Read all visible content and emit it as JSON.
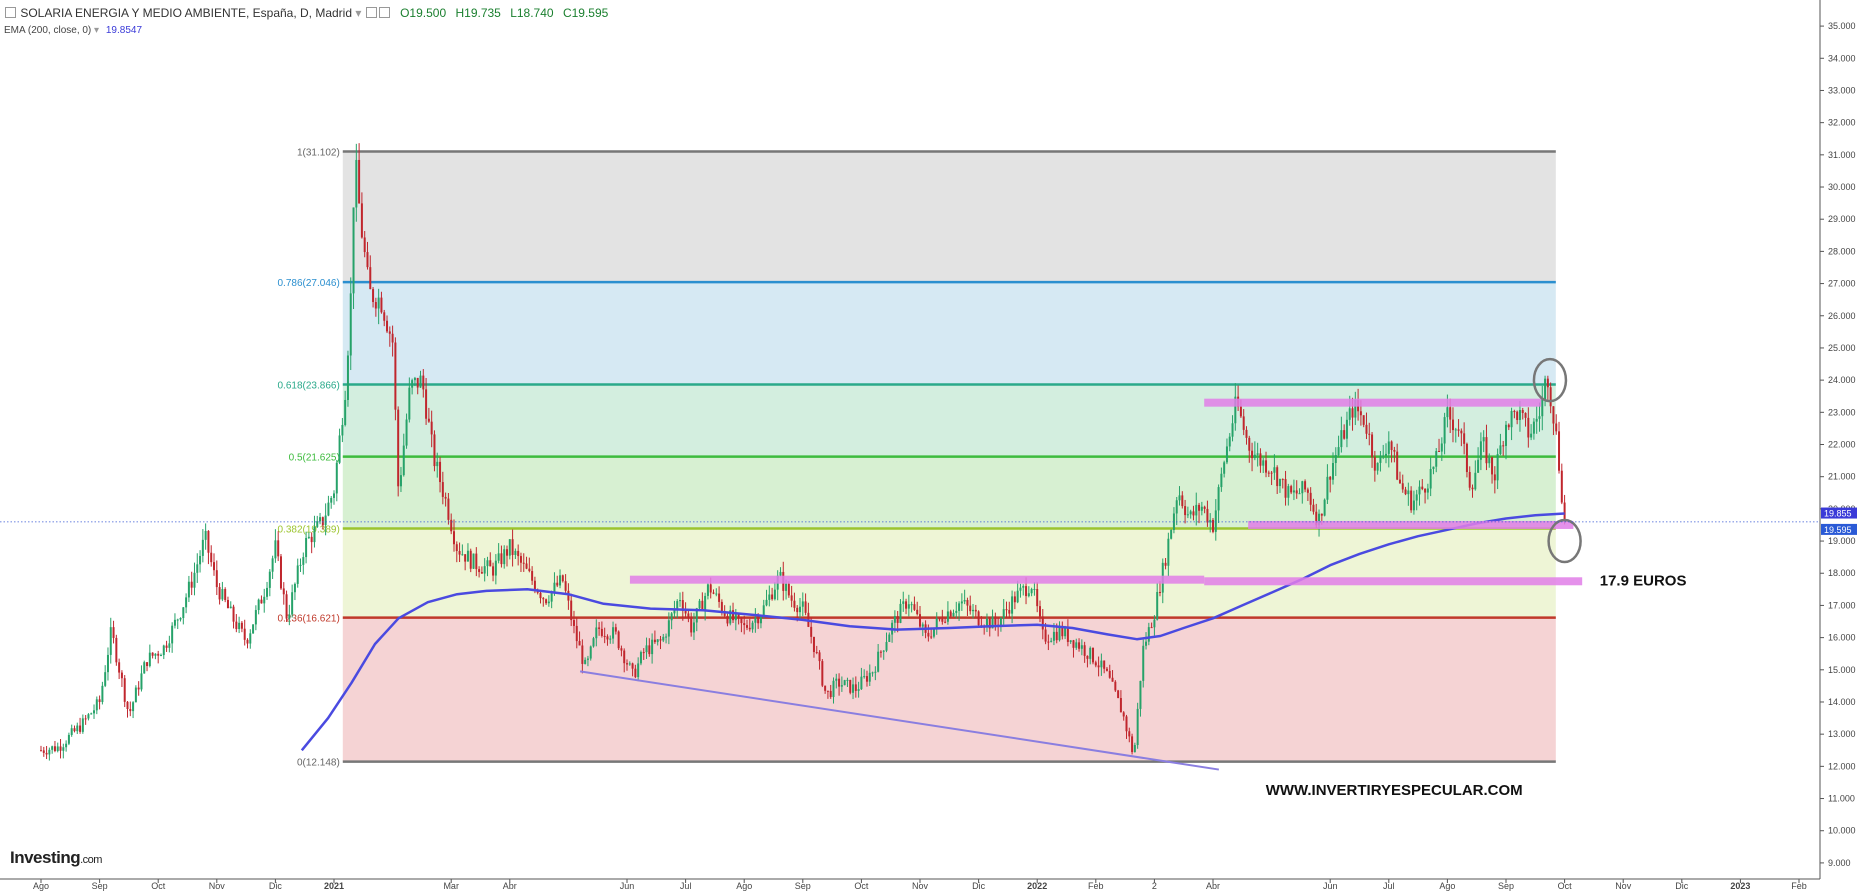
{
  "header": {
    "instrument": "SOLARIA ENERGIA Y MEDIO AMBIENTE, España, D, Madrid",
    "open": "O19.500",
    "high": "H19.735",
    "low": "L18.740",
    "close": "C19.595",
    "indicator": "EMA (200, close, 0)",
    "indicator_value": "19.8547"
  },
  "logo": {
    "brand": "Investing",
    "suffix": ".com"
  },
  "colors": {
    "up": "#26a269",
    "down": "#c0262d",
    "ema": "#4a4ae0",
    "resistance": "#e07ee8",
    "trendline": "#8a7ee0",
    "fib_line_100": "#777777",
    "fib_line_786": "#2b8fcf",
    "fib_line_618": "#2aa98a",
    "fib_line_50": "#3dbb3d",
    "fib_line_382": "#9cc42e",
    "fib_line_236": "#c0392b",
    "fib_line_0": "#777777"
  },
  "chart_data": {
    "type": "candlestick",
    "instrument": "SOLARIA ENERGIA Y MEDIO AMBIENTE",
    "interval": "D",
    "ylim": [
      8.5,
      35.5
    ],
    "y_ticks": [
      "9.000",
      "10.000",
      "11.000",
      "12.000",
      "13.000",
      "14.000",
      "15.000",
      "16.000",
      "17.000",
      "18.000",
      "19.000",
      "20.000",
      "21.000",
      "22.000",
      "23.000",
      "24.000",
      "25.000",
      "26.000",
      "27.000",
      "28.000",
      "29.000",
      "30.000",
      "31.000",
      "32.000",
      "33.000",
      "34.000",
      "35.000"
    ],
    "x_ticks": [
      "Ago",
      "Sep",
      "Oct",
      "Nov",
      "Dic",
      "2021",
      "Mar",
      "Abr",
      "Jun",
      "Jul",
      "Ago",
      "Sep",
      "Oct",
      "Nov",
      "Dic",
      "2022",
      "Feb",
      "2",
      "Abr",
      "Jun",
      "Jul",
      "Ago",
      "Sep",
      "Oct",
      "Nov",
      "Dic",
      "2023",
      "Feb"
    ],
    "x_tick_months": [
      0,
      1,
      2,
      3,
      4,
      5,
      7,
      8,
      10,
      11,
      12,
      13,
      14,
      15,
      16,
      17,
      18,
      19,
      20,
      22,
      23,
      24,
      25,
      26,
      27,
      28,
      29,
      30
    ],
    "last_price": 19.595,
    "last_price_label": "19.595",
    "ema_last": 19.855,
    "ema_last_label": "19.855",
    "fibonacci": {
      "start_month": 5.15,
      "end_month": 25.85,
      "levels": [
        {
          "ratio": "1",
          "price": 31.102,
          "label": "1(31.102)"
        },
        {
          "ratio": "0.786",
          "price": 27.046,
          "label": "0.786(27.046)"
        },
        {
          "ratio": "0.618",
          "price": 23.866,
          "label": "0.618(23.866)"
        },
        {
          "ratio": "0.5",
          "price": 21.625,
          "label": "0.5(21.625)"
        },
        {
          "ratio": "0.382",
          "price": 19.389,
          "label": "0.382(19.389)"
        },
        {
          "ratio": "0.236",
          "price": 16.621,
          "label": "0.236(16.621)"
        },
        {
          "ratio": "0",
          "price": 12.148,
          "label": "0(12.148)"
        }
      ],
      "fills": [
        "#e3e3e3",
        "#d6e9f3",
        "#d3eedf",
        "#d7f0d2",
        "#eef5d6",
        "#f5d3d4"
      ]
    },
    "close_path": [
      [
        0.0,
        12.5
      ],
      [
        0.3,
        12.6
      ],
      [
        0.7,
        13.3
      ],
      [
        1.0,
        14.0
      ],
      [
        1.2,
        16.2
      ],
      [
        1.5,
        13.6
      ],
      [
        1.8,
        15.3
      ],
      [
        2.1,
        15.7
      ],
      [
        2.4,
        16.9
      ],
      [
        2.6,
        17.9
      ],
      [
        2.8,
        19.1
      ],
      [
        3.0,
        17.6
      ],
      [
        3.3,
        16.5
      ],
      [
        3.5,
        15.9
      ],
      [
        3.8,
        17.4
      ],
      [
        4.0,
        18.8
      ],
      [
        4.2,
        16.6
      ],
      [
        4.5,
        18.9
      ],
      [
        4.8,
        19.6
      ],
      [
        5.0,
        20.6
      ],
      [
        5.2,
        23.9
      ],
      [
        5.3,
        27.0
      ],
      [
        5.35,
        31.0
      ],
      [
        5.45,
        29.0
      ],
      [
        5.6,
        26.7
      ],
      [
        5.8,
        26.5
      ],
      [
        6.0,
        25.2
      ],
      [
        6.1,
        20.5
      ],
      [
        6.3,
        23.8
      ],
      [
        6.5,
        24.0
      ],
      [
        6.7,
        21.6
      ],
      [
        6.9,
        20.3
      ],
      [
        7.1,
        18.8
      ],
      [
        7.4,
        18.3
      ],
      [
        7.7,
        18.1
      ],
      [
        8.0,
        18.8
      ],
      [
        8.3,
        18.0
      ],
      [
        8.6,
        17.2
      ],
      [
        8.9,
        17.8
      ],
      [
        9.1,
        16.2
      ],
      [
        9.3,
        15.0
      ],
      [
        9.5,
        16.3
      ],
      [
        9.8,
        16.1
      ],
      [
        10.1,
        14.8
      ],
      [
        10.3,
        15.6
      ],
      [
        10.6,
        15.9
      ],
      [
        10.9,
        17.3
      ],
      [
        11.1,
        16.3
      ],
      [
        11.4,
        17.6
      ],
      [
        11.7,
        16.7
      ],
      [
        12.0,
        16.3
      ],
      [
        12.3,
        16.8
      ],
      [
        12.6,
        17.9
      ],
      [
        12.8,
        17.2
      ],
      [
        13.0,
        16.9
      ],
      [
        13.2,
        15.7
      ],
      [
        13.4,
        14.2
      ],
      [
        13.6,
        14.6
      ],
      [
        13.9,
        14.4
      ],
      [
        14.2,
        15.0
      ],
      [
        14.5,
        16.3
      ],
      [
        14.8,
        17.2
      ],
      [
        15.1,
        16.0
      ],
      [
        15.4,
        16.7
      ],
      [
        15.7,
        17.1
      ],
      [
        16.0,
        16.6
      ],
      [
        16.3,
        16.4
      ],
      [
        16.6,
        17.2
      ],
      [
        16.9,
        17.7
      ],
      [
        17.1,
        16.0
      ],
      [
        17.4,
        16.2
      ],
      [
        17.7,
        15.8
      ],
      [
        18.0,
        15.3
      ],
      [
        18.2,
        14.8
      ],
      [
        18.45,
        13.7
      ],
      [
        18.65,
        12.3
      ],
      [
        18.8,
        15.6
      ],
      [
        19.0,
        16.8
      ],
      [
        19.2,
        18.6
      ],
      [
        19.4,
        20.6
      ],
      [
        19.6,
        19.7
      ],
      [
        19.8,
        20.1
      ],
      [
        20.0,
        19.5
      ],
      [
        20.2,
        21.6
      ],
      [
        20.4,
        23.3
      ],
      [
        20.6,
        22.0
      ],
      [
        20.8,
        21.5
      ],
      [
        21.0,
        21.3
      ],
      [
        21.3,
        20.4
      ],
      [
        21.6,
        20.6
      ],
      [
        21.8,
        19.6
      ],
      [
        22.0,
        21.2
      ],
      [
        22.2,
        22.2
      ],
      [
        22.4,
        23.2
      ],
      [
        22.6,
        22.7
      ],
      [
        22.8,
        21.2
      ],
      [
        23.0,
        22.2
      ],
      [
        23.2,
        20.7
      ],
      [
        23.4,
        20.2
      ],
      [
        23.6,
        20.7
      ],
      [
        23.8,
        21.4
      ],
      [
        24.0,
        22.9
      ],
      [
        24.2,
        22.5
      ],
      [
        24.4,
        20.7
      ],
      [
        24.6,
        22.0
      ],
      [
        24.8,
        21.0
      ],
      [
        25.0,
        22.7
      ],
      [
        25.2,
        23.0
      ],
      [
        25.4,
        22.3
      ],
      [
        25.6,
        23.1
      ],
      [
        25.7,
        24.3
      ],
      [
        25.85,
        22.4
      ],
      [
        26.0,
        19.6
      ]
    ],
    "ema_path": [
      [
        4.45,
        12.5
      ],
      [
        4.9,
        13.5
      ],
      [
        5.3,
        14.6
      ],
      [
        5.7,
        15.8
      ],
      [
        6.1,
        16.6
      ],
      [
        6.6,
        17.1
      ],
      [
        7.1,
        17.35
      ],
      [
        7.6,
        17.45
      ],
      [
        8.3,
        17.5
      ],
      [
        9.0,
        17.35
      ],
      [
        9.6,
        17.05
      ],
      [
        10.4,
        16.9
      ],
      [
        11.3,
        16.85
      ],
      [
        12.2,
        16.7
      ],
      [
        13.0,
        16.55
      ],
      [
        13.8,
        16.35
      ],
      [
        14.6,
        16.25
      ],
      [
        15.5,
        16.3
      ],
      [
        16.2,
        16.35
      ],
      [
        17.0,
        16.4
      ],
      [
        17.6,
        16.3
      ],
      [
        18.2,
        16.1
      ],
      [
        18.7,
        15.95
      ],
      [
        19.1,
        16.05
      ],
      [
        19.5,
        16.3
      ],
      [
        20.0,
        16.6
      ],
      [
        20.5,
        17.0
      ],
      [
        21.0,
        17.4
      ],
      [
        21.5,
        17.8
      ],
      [
        22.0,
        18.25
      ],
      [
        22.5,
        18.6
      ],
      [
        23.0,
        18.9
      ],
      [
        23.5,
        19.15
      ],
      [
        24.0,
        19.35
      ],
      [
        24.5,
        19.55
      ],
      [
        25.0,
        19.7
      ],
      [
        25.5,
        19.8
      ],
      [
        26.0,
        19.855
      ]
    ],
    "resistance_zones": [
      {
        "x0": 19.85,
        "x1": 25.6,
        "price": 23.3
      },
      {
        "x0": 20.6,
        "x1": 26.15,
        "price": 19.5
      },
      {
        "x0": 10.05,
        "x1": 19.85,
        "price": 17.8
      },
      {
        "x0": 19.85,
        "x1": 26.3,
        "price": 17.75
      }
    ],
    "trendline": {
      "x0": 9.2,
      "y0": 14.95,
      "x1": 20.1,
      "y1": 11.9
    },
    "highlight_circles": [
      {
        "month": 25.75,
        "price": 24.0
      },
      {
        "month": 26.0,
        "price": 19.0
      }
    ],
    "annotations": [
      {
        "text": "17.9 EUROS",
        "month": 26.6,
        "price": 17.8
      },
      {
        "text": "WWW.INVERTIRYESPECULAR.COM",
        "month": 20.9,
        "price": 11.3
      }
    ]
  }
}
